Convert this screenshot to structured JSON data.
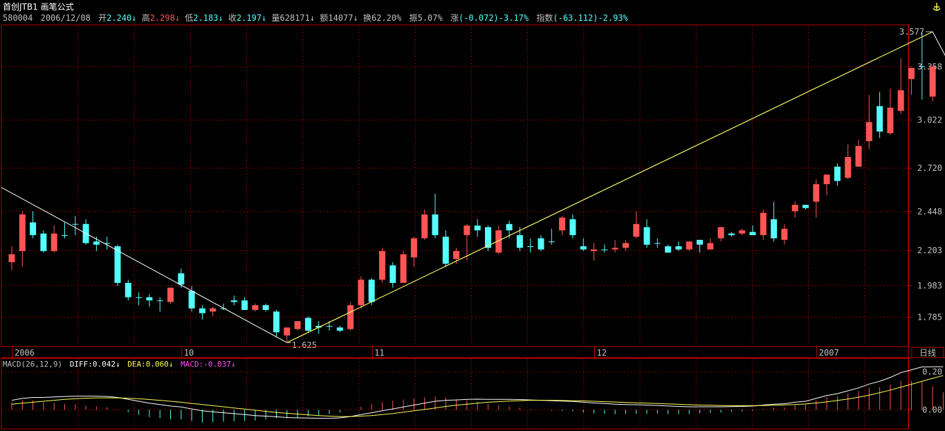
{
  "header": {
    "title": "首创JTB1",
    "formula": "画笔公式",
    "code": "580004",
    "date": "2006/12/08",
    "open_label": "开",
    "open": "2.240",
    "high_label": "高",
    "high": "2.298",
    "low_label": "低",
    "low": "2.183",
    "close_label": "收",
    "close": "2.197",
    "vol_label": "量",
    "vol": "628171",
    "amt_label": "额",
    "amt": "14077",
    "turn_label": "换",
    "turn": "62.20%",
    "amp_label": "振",
    "amp": "5.07%",
    "chg_label": "涨",
    "chg": "(-0.072)-3.17%",
    "idx_label": "指数",
    "idx": "(-63.112)-2.93%"
  },
  "period_label": "日线",
  "macd_header": {
    "name": "MACD(26,12,9)",
    "diff": "DIFF:0.042",
    "dea": "DEA:0.060",
    "macd": "MACD:-0.037"
  },
  "colors": {
    "up": "#ff5454",
    "down": "#54ffff",
    "grid": "#8b0000",
    "axis": "#c00000",
    "text": "#c0c0c0",
    "diff": "#ffffff",
    "dea": "#ffff54",
    "macd_label": "#ff54ff"
  },
  "chart_data": [
    {
      "type": "candlestick",
      "yticks": [
        "1.785",
        "1.983",
        "2.203",
        "2.448",
        "2.720",
        "3.022",
        "3.358"
      ],
      "ylim": [
        1.6,
        3.62
      ],
      "x_labels": [
        {
          "index": 0,
          "label": "2006"
        },
        {
          "index": 16,
          "label": "10"
        },
        {
          "index": 34,
          "label": "11"
        },
        {
          "index": 55,
          "label": "12"
        },
        {
          "index": 76,
          "label": "2007"
        }
      ],
      "candles": [
        [
          2.13,
          2.18,
          2.08,
          2.23
        ],
        [
          2.2,
          2.43,
          2.1,
          2.45
        ],
        [
          2.38,
          2.3,
          2.28,
          2.45
        ],
        [
          2.31,
          2.2,
          2.19,
          2.33
        ],
        [
          2.2,
          2.31,
          2.19,
          2.36
        ],
        [
          2.3,
          2.3,
          2.28,
          2.38
        ],
        [
          2.37,
          2.37,
          2.3,
          2.42
        ],
        [
          2.37,
          2.25,
          2.24,
          2.4
        ],
        [
          2.26,
          2.24,
          2.2,
          2.29
        ],
        [
          2.25,
          2.25,
          2.21,
          2.29
        ],
        [
          2.23,
          2.0,
          1.98,
          2.24
        ],
        [
          2.0,
          1.91,
          1.89,
          2.02
        ],
        [
          1.91,
          1.91,
          1.86,
          1.94
        ],
        [
          1.91,
          1.89,
          1.85,
          1.93
        ],
        [
          1.89,
          1.89,
          1.82,
          1.91
        ],
        [
          1.88,
          1.97,
          1.87,
          1.97
        ],
        [
          2.06,
          1.99,
          1.97,
          2.09
        ],
        [
          1.95,
          1.84,
          1.82,
          1.98
        ],
        [
          1.84,
          1.81,
          1.77,
          1.86
        ],
        [
          1.82,
          1.84,
          1.79,
          1.85
        ],
        [
          1.84,
          1.84,
          1.83,
          1.87
        ],
        [
          1.89,
          1.88,
          1.86,
          1.92
        ],
        [
          1.89,
          1.83,
          1.83,
          1.91
        ],
        [
          1.83,
          1.86,
          1.82,
          1.87
        ],
        [
          1.86,
          1.83,
          1.82,
          1.87
        ],
        [
          1.82,
          1.69,
          1.66,
          1.83
        ],
        [
          1.67,
          1.72,
          1.625,
          1.72
        ],
        [
          1.71,
          1.76,
          1.7,
          1.76
        ],
        [
          1.78,
          1.7,
          1.69,
          1.79
        ],
        [
          1.73,
          1.72,
          1.68,
          1.76
        ],
        [
          1.73,
          1.73,
          1.7,
          1.76
        ],
        [
          1.72,
          1.7,
          1.69,
          1.73
        ],
        [
          1.71,
          1.86,
          1.7,
          1.88
        ],
        [
          1.86,
          2.02,
          1.84,
          2.04
        ],
        [
          2.02,
          1.88,
          1.86,
          2.03
        ],
        [
          2.02,
          2.2,
          2.0,
          2.22
        ],
        [
          2.11,
          2.0,
          1.97,
          2.13
        ],
        [
          2.0,
          2.18,
          2.0,
          2.2
        ],
        [
          2.16,
          2.28,
          2.1,
          2.29
        ],
        [
          2.28,
          2.43,
          2.27,
          2.46
        ],
        [
          2.43,
          2.3,
          2.28,
          2.56
        ],
        [
          2.29,
          2.12,
          2.1,
          2.33
        ],
        [
          2.15,
          2.2,
          2.12,
          2.22
        ],
        [
          2.3,
          2.36,
          2.14,
          2.37
        ],
        [
          2.36,
          2.33,
          2.29,
          2.4
        ],
        [
          2.35,
          2.22,
          2.2,
          2.36
        ],
        [
          2.19,
          2.33,
          2.18,
          2.36
        ],
        [
          2.37,
          2.33,
          2.28,
          2.39
        ],
        [
          2.3,
          2.22,
          2.2,
          2.35
        ],
        [
          2.23,
          2.23,
          2.19,
          2.28
        ],
        [
          2.28,
          2.21,
          2.2,
          2.3
        ],
        [
          2.26,
          2.26,
          2.24,
          2.34
        ],
        [
          2.33,
          2.41,
          2.3,
          2.42
        ],
        [
          2.4,
          2.3,
          2.28,
          2.43
        ],
        [
          2.23,
          2.21,
          2.2,
          2.28
        ],
        [
          2.2,
          2.21,
          2.14,
          2.25
        ],
        [
          2.21,
          2.21,
          2.19,
          2.24
        ],
        [
          2.21,
          2.22,
          2.19,
          2.27
        ],
        [
          2.22,
          2.25,
          2.2,
          2.27
        ],
        [
          2.29,
          2.37,
          2.28,
          2.45
        ],
        [
          2.35,
          2.24,
          2.22,
          2.4
        ],
        [
          2.25,
          2.25,
          2.22,
          2.28
        ],
        [
          2.23,
          2.19,
          2.19,
          2.24
        ],
        [
          2.23,
          2.21,
          2.2,
          2.26
        ],
        [
          2.21,
          2.26,
          2.2,
          2.26
        ],
        [
          2.27,
          2.24,
          2.19,
          2.27
        ],
        [
          2.21,
          2.25,
          2.21,
          2.28
        ],
        [
          2.28,
          2.35,
          2.26,
          2.35
        ],
        [
          2.31,
          2.3,
          2.29,
          2.32
        ],
        [
          2.31,
          2.33,
          2.3,
          2.34
        ],
        [
          2.32,
          2.3,
          2.3,
          2.36
        ],
        [
          2.3,
          2.44,
          2.27,
          2.46
        ],
        [
          2.4,
          2.28,
          2.26,
          2.51
        ],
        [
          2.27,
          2.34,
          2.24,
          2.37
        ],
        [
          2.45,
          2.49,
          2.41,
          2.51
        ],
        [
          2.49,
          2.47,
          2.46,
          2.49
        ],
        [
          2.51,
          2.62,
          2.41,
          2.65
        ],
        [
          2.62,
          2.68,
          2.55,
          2.66
        ],
        [
          2.73,
          2.64,
          2.61,
          2.75
        ],
        [
          2.66,
          2.79,
          2.65,
          2.87
        ],
        [
          2.73,
          2.86,
          2.73,
          2.9
        ],
        [
          2.89,
          3.01,
          2.84,
          3.18
        ],
        [
          3.11,
          2.95,
          2.91,
          3.2
        ],
        [
          2.94,
          3.1,
          2.93,
          3.22
        ],
        [
          3.08,
          3.21,
          3.06,
          3.41
        ],
        [
          3.28,
          3.35,
          3.18,
          3.35
        ],
        [
          3.36,
          3.36,
          3.15,
          3.58
        ],
        [
          3.17,
          3.36,
          3.14,
          3.36
        ]
      ],
      "annotations": [
        {
          "index": 87,
          "value": 3.577,
          "label": "3.577"
        },
        {
          "index": 26,
          "value": 1.625,
          "label": "1.625"
        }
      ],
      "trend_lines": [
        [
          {
            "index": -1,
            "value": 2.6
          },
          {
            "index": 26,
            "value": 1.625
          }
        ],
        [
          {
            "index": 26,
            "value": 1.625
          },
          {
            "index": 87,
            "value": 3.577
          }
        ],
        [
          {
            "index": 87,
            "value": 3.577
          },
          {
            "index": 89.2,
            "value": 3.3
          }
        ]
      ]
    },
    {
      "type": "macd",
      "yticks": [
        "0.20",
        "0.00"
      ],
      "ylim": [
        -0.1,
        0.27
      ],
      "dif": [
        0.05,
        0.06,
        0.065,
        0.065,
        0.068,
        0.07,
        0.072,
        0.072,
        0.072,
        0.07,
        0.065,
        0.055,
        0.045,
        0.035,
        0.028,
        0.02,
        0.015,
        0.005,
        -0.005,
        -0.01,
        -0.015,
        -0.02,
        -0.025,
        -0.03,
        -0.033,
        -0.036,
        -0.04,
        -0.042,
        -0.043,
        -0.044,
        -0.044,
        -0.042,
        -0.035,
        -0.025,
        -0.015,
        -0.005,
        0.005,
        0.015,
        0.025,
        0.035,
        0.045,
        0.05,
        0.052,
        0.055,
        0.056,
        0.055,
        0.055,
        0.055,
        0.054,
        0.052,
        0.05,
        0.048,
        0.046,
        0.044,
        0.04,
        0.036,
        0.033,
        0.03,
        0.028,
        0.027,
        0.025,
        0.023,
        0.02,
        0.018,
        0.016,
        0.016,
        0.016,
        0.016,
        0.017,
        0.018,
        0.02,
        0.025,
        0.03,
        0.032,
        0.04,
        0.045,
        0.06,
        0.075,
        0.085,
        0.1,
        0.115,
        0.135,
        0.15,
        0.17,
        0.195,
        0.21,
        0.225,
        0.226,
        0.226
      ],
      "dea": [
        0.03,
        0.035,
        0.04,
        0.045,
        0.05,
        0.055,
        0.058,
        0.061,
        0.063,
        0.063,
        0.063,
        0.061,
        0.058,
        0.054,
        0.05,
        0.045,
        0.04,
        0.034,
        0.028,
        0.022,
        0.016,
        0.01,
        0.004,
        -0.002,
        -0.008,
        -0.014,
        -0.018,
        -0.022,
        -0.026,
        -0.03,
        -0.033,
        -0.035,
        -0.035,
        -0.033,
        -0.03,
        -0.025,
        -0.019,
        -0.012,
        -0.005,
        0.002,
        0.01,
        0.018,
        0.024,
        0.03,
        0.035,
        0.04,
        0.043,
        0.046,
        0.048,
        0.05,
        0.05,
        0.05,
        0.049,
        0.048,
        0.047,
        0.045,
        0.043,
        0.041,
        0.039,
        0.037,
        0.035,
        0.033,
        0.031,
        0.029,
        0.027,
        0.025,
        0.024,
        0.023,
        0.022,
        0.022,
        0.022,
        0.023,
        0.024,
        0.026,
        0.028,
        0.031,
        0.036,
        0.042,
        0.049,
        0.057,
        0.066,
        0.077,
        0.09,
        0.104,
        0.119,
        0.134,
        0.15,
        0.165,
        0.18
      ]
    }
  ]
}
